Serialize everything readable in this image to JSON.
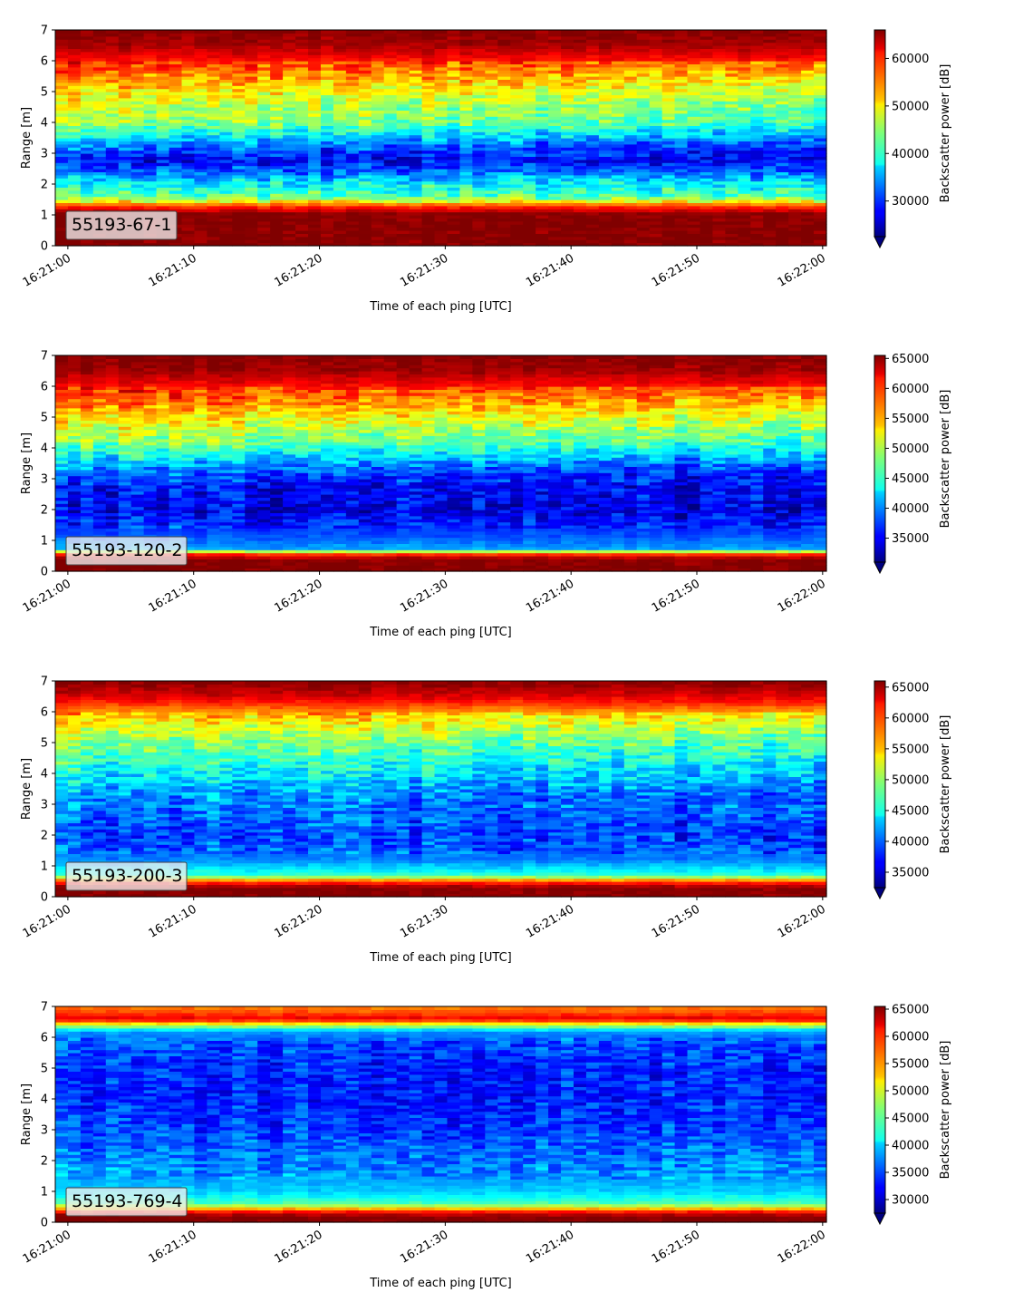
{
  "chart_data": [
    {
      "type": "heatmap",
      "label": "55193-67-1",
      "xlabel": "Time of each ping [UTC]",
      "ylabel": "Range [m]",
      "x_ticks": [
        "16:21:00",
        "16:21:10",
        "16:21:20",
        "16:21:30",
        "16:21:40",
        "16:21:50",
        "16:22:00"
      ],
      "x_range_s": [
        -1,
        60.3
      ],
      "ylim": [
        0,
        7
      ],
      "y_ticks": [
        0,
        1,
        2,
        3,
        4,
        5,
        6,
        7
      ],
      "colorbar": {
        "label": "Backscatter power [dB]",
        "colormap": "jet",
        "range": [
          22500,
          66000
        ],
        "ticks": [
          30000,
          40000,
          50000,
          60000
        ],
        "extend": "min"
      },
      "profile": [
        {
          "r": 0.0,
          "v": 66000
        },
        {
          "r": 0.25,
          "v": 66000
        },
        {
          "r": 1.05,
          "v": 66000
        },
        {
          "r": 1.3,
          "v": 58000
        },
        {
          "r": 1.6,
          "v": 43000
        },
        {
          "r": 2.0,
          "v": 39500
        },
        {
          "r": 2.4,
          "v": 33000
        },
        {
          "r": 2.8,
          "v": 28000
        },
        {
          "r": 3.2,
          "v": 34000
        },
        {
          "r": 3.6,
          "v": 40000
        },
        {
          "r": 4.0,
          "v": 46000
        },
        {
          "r": 4.5,
          "v": 48000
        },
        {
          "r": 5.0,
          "v": 51000
        },
        {
          "r": 5.5,
          "v": 56000
        },
        {
          "r": 6.0,
          "v": 60000
        },
        {
          "r": 6.5,
          "v": 64500
        },
        {
          "r": 7.0,
          "v": 66000
        }
      ],
      "noise": 4500,
      "trend": -5000
    },
    {
      "type": "heatmap",
      "label": "55193-120-2",
      "xlabel": "Time of each ping [UTC]",
      "ylabel": "Range [m]",
      "x_ticks": [
        "16:21:00",
        "16:21:10",
        "16:21:20",
        "16:21:30",
        "16:21:40",
        "16:21:50",
        "16:22:00"
      ],
      "x_range_s": [
        -1,
        60.3
      ],
      "ylim": [
        0,
        7
      ],
      "y_ticks": [
        0,
        1,
        2,
        3,
        4,
        5,
        6,
        7
      ],
      "colorbar": {
        "label": "Backscatter power [dB]",
        "colormap": "jet",
        "range": [
          31000,
          65500
        ],
        "ticks": [
          35000,
          40000,
          45000,
          50000,
          55000,
          60000,
          65000
        ],
        "extend": "min"
      },
      "profile": [
        {
          "r": 0.0,
          "v": 65500
        },
        {
          "r": 0.4,
          "v": 65500
        },
        {
          "r": 0.55,
          "v": 60000
        },
        {
          "r": 0.75,
          "v": 41000
        },
        {
          "r": 1.2,
          "v": 38000
        },
        {
          "r": 2.0,
          "v": 35000
        },
        {
          "r": 2.8,
          "v": 36000
        },
        {
          "r": 3.5,
          "v": 42000
        },
        {
          "r": 4.2,
          "v": 49000
        },
        {
          "r": 5.0,
          "v": 54000
        },
        {
          "r": 5.5,
          "v": 58000
        },
        {
          "r": 6.0,
          "v": 61000
        },
        {
          "r": 6.5,
          "v": 64500
        },
        {
          "r": 7.0,
          "v": 65500
        }
      ],
      "noise": 3500,
      "trend": -3500
    },
    {
      "type": "heatmap",
      "label": "55193-200-3",
      "xlabel": "Time of each ping [UTC]",
      "ylabel": "Range [m]",
      "x_ticks": [
        "16:21:00",
        "16:21:10",
        "16:21:20",
        "16:21:30",
        "16:21:40",
        "16:21:50",
        "16:22:00"
      ],
      "x_range_s": [
        -1,
        60.3
      ],
      "ylim": [
        0,
        7
      ],
      "y_ticks": [
        0,
        1,
        2,
        3,
        4,
        5,
        6,
        7
      ],
      "colorbar": {
        "label": "Backscatter power [dB]",
        "colormap": "jet",
        "range": [
          32500,
          66000
        ],
        "ticks": [
          35000,
          40000,
          45000,
          50000,
          55000,
          60000,
          65000
        ],
        "extend": "min"
      },
      "profile": [
        {
          "r": 0.0,
          "v": 66000
        },
        {
          "r": 0.3,
          "v": 66000
        },
        {
          "r": 0.5,
          "v": 60000
        },
        {
          "r": 0.7,
          "v": 47000
        },
        {
          "r": 1.2,
          "v": 41000
        },
        {
          "r": 2.0,
          "v": 39000
        },
        {
          "r": 2.8,
          "v": 40500
        },
        {
          "r": 3.5,
          "v": 43000
        },
        {
          "r": 4.2,
          "v": 46000
        },
        {
          "r": 5.0,
          "v": 50000
        },
        {
          "r": 5.5,
          "v": 53000
        },
        {
          "r": 6.0,
          "v": 57000
        },
        {
          "r": 6.5,
          "v": 63000
        },
        {
          "r": 7.0,
          "v": 66000
        }
      ],
      "noise": 3500,
      "trend": -2500
    },
    {
      "type": "heatmap",
      "label": "55193-769-4",
      "xlabel": "Time of each ping [UTC]",
      "ylabel": "Range [m]",
      "x_ticks": [
        "16:21:00",
        "16:21:10",
        "16:21:20",
        "16:21:30",
        "16:21:40",
        "16:21:50",
        "16:22:00"
      ],
      "x_range_s": [
        -1,
        60.3
      ],
      "ylim": [
        0,
        7
      ],
      "y_ticks": [
        0,
        1,
        2,
        3,
        4,
        5,
        6,
        7
      ],
      "colorbar": {
        "label": "Backscatter power [dB]",
        "colormap": "jet",
        "range": [
          27500,
          65500
        ],
        "ticks": [
          30000,
          35000,
          40000,
          45000,
          50000,
          55000,
          60000,
          65000
        ],
        "extend": "min"
      },
      "profile": [
        {
          "r": 0.0,
          "v": 65500
        },
        {
          "r": 0.2,
          "v": 65500
        },
        {
          "r": 0.35,
          "v": 60000
        },
        {
          "r": 0.6,
          "v": 45000
        },
        {
          "r": 1.0,
          "v": 40000
        },
        {
          "r": 1.5,
          "v": 38000
        },
        {
          "r": 2.0,
          "v": 37000
        },
        {
          "r": 3.0,
          "v": 34500
        },
        {
          "r": 4.0,
          "v": 33500
        },
        {
          "r": 5.0,
          "v": 33500
        },
        {
          "r": 5.8,
          "v": 35000
        },
        {
          "r": 6.2,
          "v": 38000
        },
        {
          "r": 6.45,
          "v": 52000
        },
        {
          "r": 6.6,
          "v": 62000
        },
        {
          "r": 6.8,
          "v": 58000
        },
        {
          "r": 7.0,
          "v": 56000
        }
      ],
      "noise": 3500,
      "trend": 0
    }
  ]
}
